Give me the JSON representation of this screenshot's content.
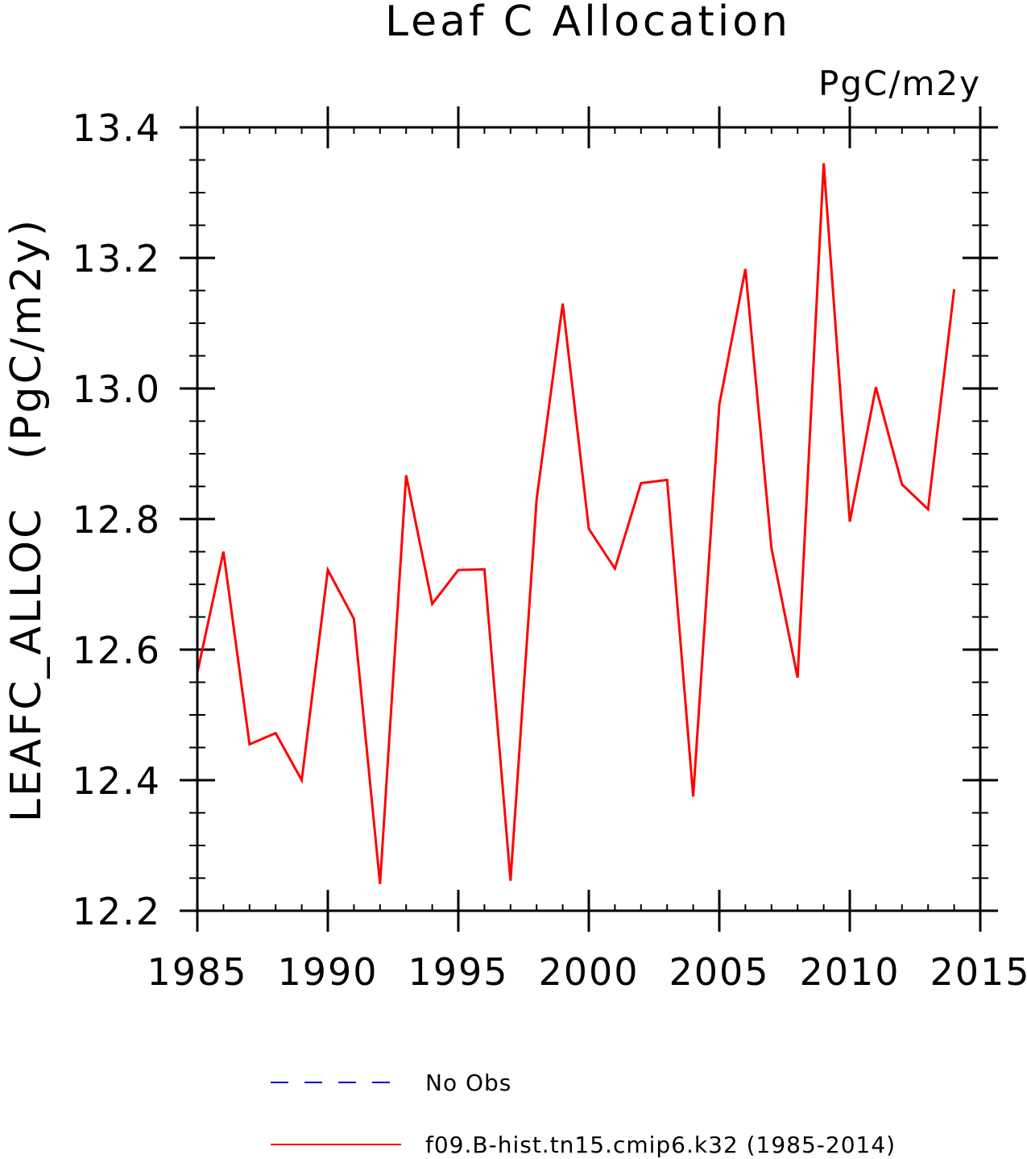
{
  "chart_data": {
    "type": "line",
    "title": "Leaf C Allocation",
    "units_label": "PgC/m2y",
    "ylabel": "LEAFC_ALLOC   (PgC/m2y)",
    "xlabel": "",
    "xlim": [
      1985,
      2015
    ],
    "ylim": [
      12.2,
      13.4
    ],
    "x_ticks": [
      1985,
      1990,
      1995,
      2000,
      2005,
      2010,
      2015
    ],
    "x_tick_labels": [
      "1985",
      "1990",
      "1995",
      "2000",
      "2005",
      "2010",
      "2015"
    ],
    "y_ticks": [
      12.2,
      12.4,
      12.6,
      12.8,
      13.0,
      13.2,
      13.4
    ],
    "y_tick_labels": [
      "12.2",
      "12.4",
      "12.6",
      "12.8",
      "13.0",
      "13.2",
      "13.4"
    ],
    "grid": false,
    "legend_position": "bottom",
    "series": [
      {
        "name": "No Obs",
        "color": "#0000cc",
        "dash": true,
        "x": [],
        "values": []
      },
      {
        "name": "f09.B-hist.tn15.cmip6.k32 (1985-2014)",
        "color": "#ff0000",
        "dash": false,
        "x": [
          1985,
          1986,
          1987,
          1988,
          1989,
          1990,
          1991,
          1992,
          1993,
          1994,
          1995,
          1996,
          1997,
          1998,
          1999,
          2000,
          2001,
          2002,
          2003,
          2004,
          2005,
          2006,
          2007,
          2008,
          2009,
          2010,
          2011,
          2012,
          2013,
          2014
        ],
        "values": [
          12.565,
          12.75,
          12.455,
          12.472,
          12.4,
          12.722,
          12.647,
          12.241,
          12.867,
          12.67,
          12.722,
          12.723,
          12.246,
          12.83,
          13.13,
          12.785,
          12.724,
          12.855,
          12.86,
          12.375,
          12.975,
          13.183,
          12.755,
          12.557,
          13.345,
          12.796,
          13.002,
          12.853,
          12.815,
          13.152
        ]
      }
    ]
  }
}
